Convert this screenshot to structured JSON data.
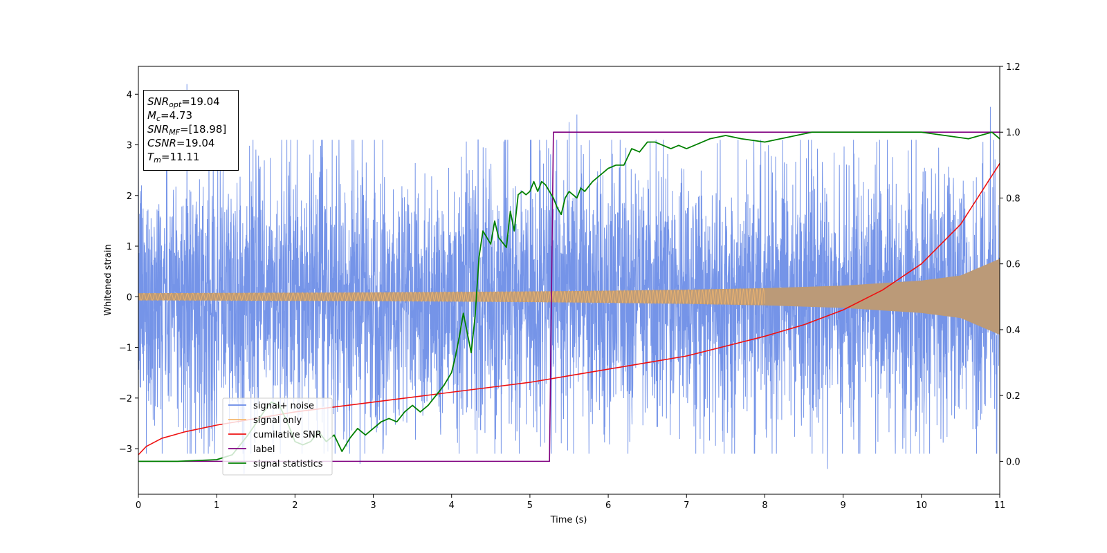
{
  "chart_data": {
    "type": "line",
    "xlabel": "Time (s)",
    "ylabel": "Whitened strain",
    "xlim": [
      0,
      11
    ],
    "ylim": [
      -3.9,
      4.55
    ],
    "y2lim": [
      -0.1,
      1.2
    ],
    "x_ticks": [
      "0",
      "1",
      "2",
      "3",
      "4",
      "5",
      "6",
      "7",
      "8",
      "9",
      "10",
      "11"
    ],
    "y_ticks": [
      "−3",
      "−2",
      "−1",
      "0",
      "1",
      "2",
      "3",
      "4"
    ],
    "y2_ticks": [
      "0.0",
      "0.2",
      "0.4",
      "0.6",
      "0.8",
      "1.0",
      "1.2"
    ],
    "grid": false,
    "legend_position": "lower-left",
    "info_box": {
      "snr_opt": "=19.04",
      "mc": "=4.73",
      "snr_mf": "=[18.98]",
      "csnr": "=19.04",
      "tm": "=11.11"
    },
    "series": [
      {
        "name": "signal+ noise",
        "axis": "left",
        "color": "#6688e6",
        "typical_band": [
          -1.5,
          1.5
        ],
        "peaks": [
          [
            0.62,
            4.2
          ],
          [
            1.35,
            -3.5
          ],
          [
            2.83,
            -3.3
          ],
          [
            5.5,
            3.45
          ],
          [
            5.6,
            3.6
          ],
          [
            8.8,
            -3.4
          ],
          [
            10.88,
            3.75
          ]
        ]
      },
      {
        "name": "signal only",
        "axis": "left",
        "color": "#f4b76e",
        "envelope": [
          [
            0,
            0.07
          ],
          [
            1,
            0.075
          ],
          [
            2,
            0.08
          ],
          [
            3,
            0.085
          ],
          [
            4,
            0.095
          ],
          [
            5,
            0.105
          ],
          [
            6,
            0.12
          ],
          [
            7,
            0.14
          ],
          [
            8,
            0.17
          ],
          [
            9,
            0.22
          ],
          [
            10,
            0.32
          ],
          [
            10.5,
            0.42
          ],
          [
            11,
            0.75
          ]
        ]
      },
      {
        "name": "cumilative SNR",
        "axis": "right",
        "color": "#ee1111",
        "x": [
          0,
          0.1,
          0.3,
          0.6,
          1,
          1.5,
          2,
          2.5,
          3,
          3.5,
          4,
          4.5,
          5,
          5.5,
          6,
          6.5,
          7,
          7.5,
          8,
          8.5,
          9,
          9.5,
          10,
          10.5,
          11
        ],
        "y": [
          0.02,
          0.045,
          0.07,
          0.09,
          0.11,
          0.13,
          0.15,
          0.165,
          0.18,
          0.195,
          0.21,
          0.225,
          0.24,
          0.26,
          0.28,
          0.3,
          0.32,
          0.35,
          0.38,
          0.415,
          0.46,
          0.52,
          0.6,
          0.72,
          0.905
        ]
      },
      {
        "name": "label",
        "axis": "right",
        "color": "#800080",
        "x": [
          0,
          5.25,
          5.3,
          11
        ],
        "y": [
          0,
          0,
          1,
          1
        ]
      },
      {
        "name": "signal statistics",
        "axis": "right",
        "color": "#008000",
        "x": [
          0,
          0.5,
          1.0,
          1.2,
          1.4,
          1.6,
          1.7,
          1.8,
          1.9,
          2.0,
          2.1,
          2.2,
          2.3,
          2.4,
          2.5,
          2.6,
          2.7,
          2.8,
          2.9,
          3.0,
          3.1,
          3.2,
          3.3,
          3.4,
          3.5,
          3.6,
          3.7,
          3.8,
          3.9,
          4.0,
          4.05,
          4.1,
          4.15,
          4.25,
          4.3,
          4.35,
          4.4,
          4.5,
          4.55,
          4.6,
          4.7,
          4.75,
          4.8,
          4.85,
          4.9,
          4.95,
          5.0,
          5.05,
          5.1,
          5.15,
          5.2,
          5.3,
          5.35,
          5.4,
          5.45,
          5.5,
          5.6,
          5.65,
          5.7,
          5.8,
          5.9,
          6.0,
          6.1,
          6.2,
          6.3,
          6.4,
          6.5,
          6.6,
          6.7,
          6.8,
          6.9,
          7.0,
          7.1,
          7.2,
          7.3,
          7.5,
          7.7,
          8.0,
          8.2,
          8.4,
          8.6,
          8.8,
          9.0,
          9.5,
          10.0,
          10.3,
          10.6,
          10.75,
          10.9,
          11.0
        ],
        "y": [
          0.0,
          0.0,
          0.005,
          0.02,
          0.08,
          0.15,
          0.18,
          0.17,
          0.12,
          0.06,
          0.05,
          0.06,
          0.09,
          0.06,
          0.08,
          0.03,
          0.07,
          0.1,
          0.08,
          0.1,
          0.12,
          0.13,
          0.12,
          0.15,
          0.17,
          0.15,
          0.17,
          0.2,
          0.23,
          0.27,
          0.32,
          0.38,
          0.45,
          0.33,
          0.44,
          0.62,
          0.7,
          0.66,
          0.73,
          0.68,
          0.65,
          0.76,
          0.7,
          0.81,
          0.82,
          0.81,
          0.82,
          0.85,
          0.82,
          0.85,
          0.84,
          0.8,
          0.77,
          0.75,
          0.8,
          0.82,
          0.8,
          0.83,
          0.82,
          0.85,
          0.87,
          0.89,
          0.9,
          0.9,
          0.95,
          0.94,
          0.97,
          0.97,
          0.96,
          0.95,
          0.96,
          0.95,
          0.96,
          0.97,
          0.98,
          0.99,
          0.98,
          0.97,
          0.98,
          0.99,
          1.0,
          1.0,
          1.0,
          1.0,
          1.0,
          0.99,
          0.98,
          0.99,
          1.0,
          0.98
        ]
      }
    ]
  }
}
